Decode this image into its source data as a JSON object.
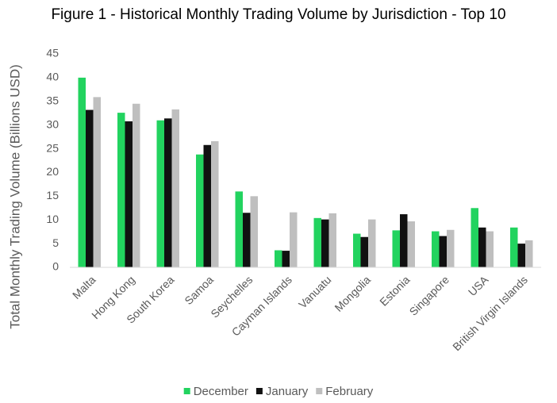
{
  "chart_data": {
    "type": "bar",
    "title": "Figure 1 - Historical Monthly Trading Volume by Jurisdiction - Top 10",
    "y_label": "Total Monthly Trading Volume (Billions USD)",
    "categories": [
      "Malta",
      "Hong Kong",
      "South Korea",
      "Samoa",
      "Seychelles",
      "Cayman Islands",
      "Vanuatu",
      "Mongolia",
      "Estonia",
      "Singapore",
      "USA",
      "British Virgin Islands"
    ],
    "series": [
      {
        "name": "December",
        "color": "#22d35f",
        "values": [
          40,
          32.6,
          31,
          23.8,
          16,
          3.6,
          10.4,
          7.1,
          7.8,
          7.6,
          12.5,
          8.4
        ]
      },
      {
        "name": "January",
        "color": "#111111",
        "values": [
          33.2,
          30.8,
          31.4,
          25.8,
          11.5,
          3.5,
          10.1,
          6.4,
          11.2,
          6.6,
          8.4,
          5
        ]
      },
      {
        "name": "February",
        "color": "#bfbfbf",
        "values": [
          35.9,
          34.5,
          33.3,
          26.6,
          15,
          11.6,
          11.4,
          10.1,
          9.7,
          7.9,
          7.6,
          5.7
        ]
      }
    ],
    "ylim": [
      0,
      45
    ],
    "yticks": [
      0,
      5,
      10,
      15,
      20,
      25,
      30,
      35,
      40,
      45
    ],
    "grid": false,
    "legend": "bottom"
  }
}
